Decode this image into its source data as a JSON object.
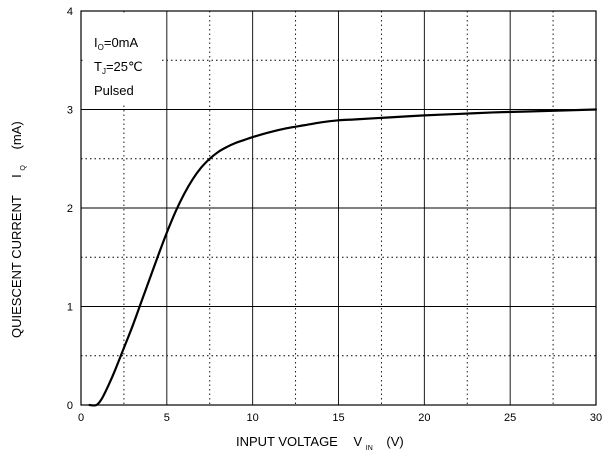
{
  "chart_data": {
    "type": "line",
    "xlabel": "INPUT VOLTAGE",
    "xlabel_symbol": "V",
    "xlabel_subscript": "IN",
    "xlabel_unit": "(V)",
    "ylabel": "QUIESCENT CURRENT",
    "ylabel_symbol": "I",
    "ylabel_subscript": "Q",
    "ylabel_unit": "(mA)",
    "xlim": [
      0,
      30
    ],
    "ylim": [
      0,
      4
    ],
    "x_ticks": [
      "0",
      "5",
      "10",
      "15",
      "20",
      "25",
      "30"
    ],
    "y_ticks": [
      "0",
      "1",
      "2",
      "3",
      "4"
    ],
    "grid": true,
    "annotations": [
      {
        "main": "I",
        "sub": "O",
        "rest": "=0mA"
      },
      {
        "main": "T",
        "sub": "J",
        "rest": "=25℃"
      },
      {
        "main": "Pulsed",
        "sub": "",
        "rest": ""
      }
    ],
    "series": [
      {
        "color": "#000000",
        "x": [
          0.5,
          0.9,
          1.2,
          1.6,
          2.0,
          2.5,
          3.0,
          3.5,
          4.0,
          4.5,
          5.0,
          5.5,
          6.0,
          6.5,
          7.0,
          7.5,
          8.0,
          8.5,
          9.0,
          9.5,
          10.0,
          11.0,
          12.0,
          13.0,
          14.0,
          15.0,
          16.0,
          18.0,
          20.0,
          22.0,
          24.0,
          26.0,
          28.0,
          30.0
        ],
        "y": [
          0.0,
          0.0,
          0.06,
          0.2,
          0.36,
          0.58,
          0.8,
          1.04,
          1.28,
          1.52,
          1.75,
          1.96,
          2.14,
          2.29,
          2.41,
          2.5,
          2.57,
          2.62,
          2.66,
          2.69,
          2.72,
          2.77,
          2.81,
          2.84,
          2.87,
          2.89,
          2.9,
          2.92,
          2.94,
          2.955,
          2.97,
          2.98,
          2.99,
          3.0
        ]
      }
    ]
  }
}
